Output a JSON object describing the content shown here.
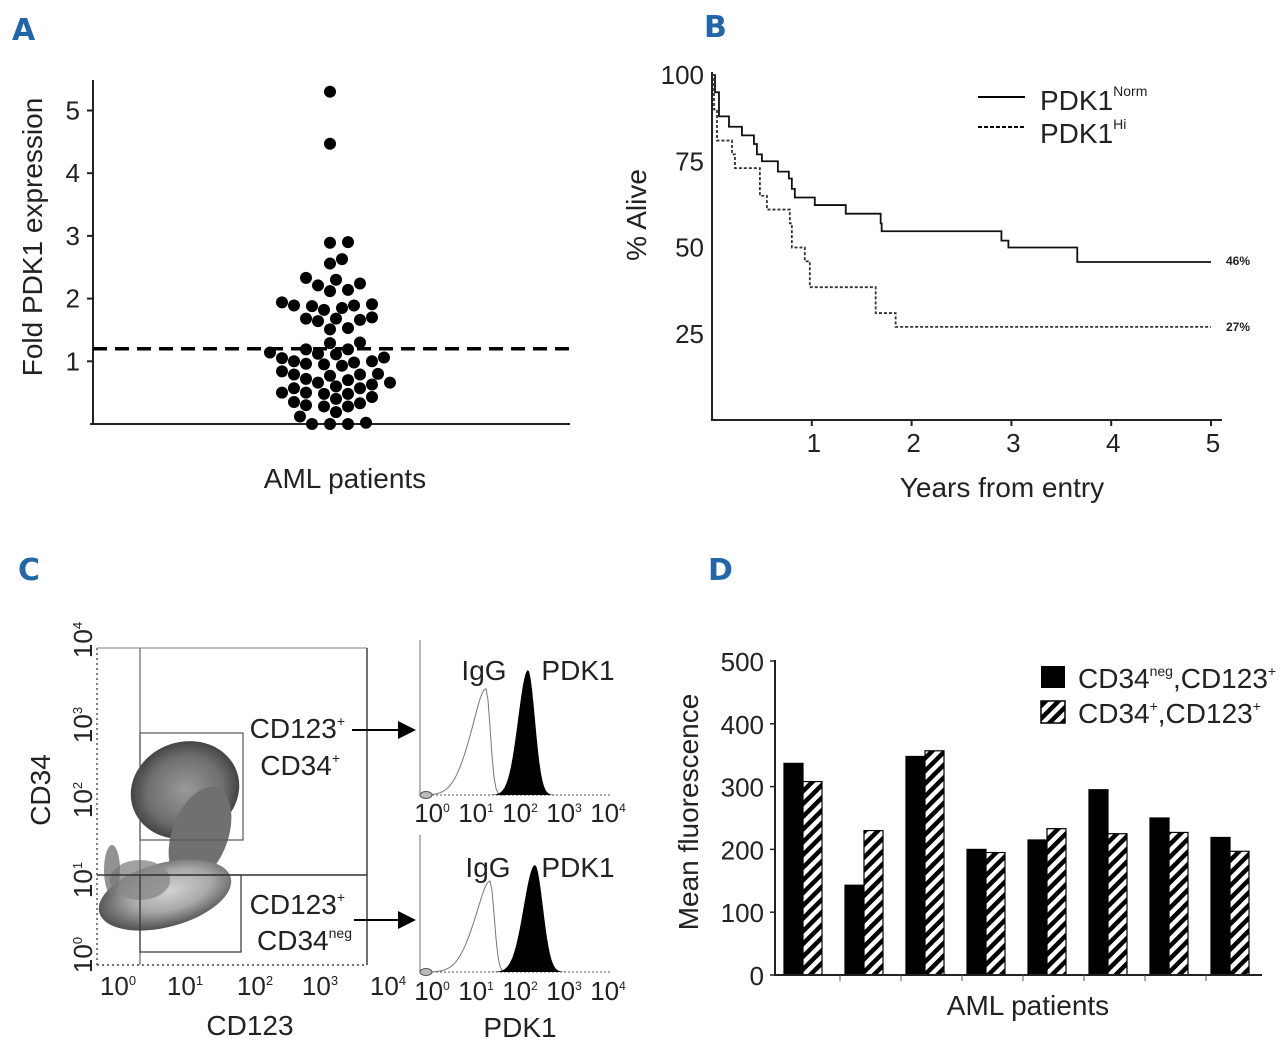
{
  "colors": {
    "panel_letter": "#2266aa",
    "ink": "#000000",
    "hatch_bg": "#ffffff"
  },
  "chart_data": [
    {
      "panel": "A",
      "type": "scatter",
      "ylabel": "Fold PDK1 expression",
      "xlabel": "AML patients",
      "yticks": [
        "1",
        "2",
        "3",
        "4",
        "5"
      ],
      "ylim": [
        0,
        5.5
      ],
      "threshold": 1.2,
      "values": [
        5.3,
        4.47,
        2.9,
        2.89,
        2.63,
        2.56,
        2.33,
        2.3,
        2.24,
        2.21,
        2.14,
        2.12,
        1.94,
        1.91,
        1.89,
        1.89,
        1.88,
        1.85,
        1.82,
        1.7,
        1.68,
        1.68,
        1.64,
        1.66,
        1.53,
        1.51,
        1.3,
        1.29,
        1.19,
        1.19,
        1.14,
        1.12,
        1.11,
        1.06,
        1.05,
        1.0,
        1.0,
        0.98,
        0.96,
        0.95,
        0.93,
        0.84,
        0.8,
        0.79,
        0.79,
        0.77,
        0.72,
        0.7,
        0.66,
        0.66,
        0.63,
        0.6,
        0.57,
        0.57,
        0.5,
        0.5,
        0.48,
        0.48,
        0.43,
        0.4,
        0.35,
        0.33,
        0.3,
        0.28,
        0.28,
        0.19,
        0.12,
        0.02,
        0.0,
        0.0,
        0.0
      ]
    },
    {
      "panel": "B",
      "type": "line",
      "ylabel": "% Alive",
      "xlabel": "Years from entry",
      "xticks": [
        "1",
        "2",
        "3",
        "4",
        "5"
      ],
      "yticks": [
        "25",
        "50",
        "75",
        "100"
      ],
      "xlim": [
        0,
        5
      ],
      "ylim": [
        0,
        100
      ],
      "legend_position": "top-right",
      "series": [
        {
          "name": "PDK1",
          "sup": "Norm",
          "style": "solid",
          "end_label": "46%",
          "steps": [
            [
              0,
              100
            ],
            [
              0.03,
              95
            ],
            [
              0.07,
              88
            ],
            [
              0.17,
              85
            ],
            [
              0.3,
              82.5
            ],
            [
              0.42,
              80
            ],
            [
              0.45,
              77
            ],
            [
              0.5,
              75
            ],
            [
              0.66,
              72
            ],
            [
              0.77,
              70
            ],
            [
              0.8,
              67
            ],
            [
              0.83,
              64.5
            ],
            [
              1.03,
              62.3
            ],
            [
              1.34,
              59.8
            ],
            [
              1.69,
              57
            ],
            [
              1.7,
              54.7
            ],
            [
              2.9,
              52
            ],
            [
              2.97,
              50
            ],
            [
              3.66,
              45.8
            ],
            [
              5,
              45.8
            ]
          ]
        },
        {
          "name": "PDK1",
          "sup": "Hi",
          "style": "dashed",
          "end_label": "27%",
          "steps": [
            [
              0,
              100
            ],
            [
              0.02,
              90
            ],
            [
              0.05,
              81
            ],
            [
              0.2,
              77
            ],
            [
              0.23,
              73
            ],
            [
              0.48,
              65
            ],
            [
              0.55,
              61
            ],
            [
              0.78,
              57
            ],
            [
              0.8,
              50
            ],
            [
              0.93,
              46
            ],
            [
              0.98,
              38.5
            ],
            [
              1.64,
              31
            ],
            [
              1.84,
              27
            ],
            [
              5,
              27
            ]
          ]
        }
      ]
    },
    {
      "panel": "C",
      "type": "scatter",
      "ylabel": "CD34",
      "xlabel": "CD123",
      "ticks": [
        {
          "b": "10",
          "e": "0"
        },
        {
          "b": "10",
          "e": "1"
        },
        {
          "b": "10",
          "e": "2"
        },
        {
          "b": "10",
          "e": "3"
        },
        {
          "b": "10",
          "e": "4"
        }
      ],
      "gates": [
        {
          "line1": "CD123",
          "sup1": "+",
          "line2": "CD34",
          "sup2": "+"
        },
        {
          "line1": "CD123",
          "sup1": "+",
          "line2": "CD34",
          "sup2": "neg"
        }
      ],
      "histograms": [
        {
          "control": "IgG",
          "stain": "PDK1"
        },
        {
          "control": "IgG",
          "stain": "PDK1"
        }
      ],
      "histogram_xlabel": "PDK1"
    },
    {
      "panel": "D",
      "type": "bar",
      "ylabel": "Mean fluorescence",
      "xlabel": "AML patients",
      "yticks": [
        "0",
        "100",
        "200",
        "300",
        "400",
        "500"
      ],
      "ylim": [
        0,
        500
      ],
      "legend_position": "top-right",
      "series": [
        {
          "name": "CD34",
          "sup": "neg",
          "suffix": ",CD123",
          "sup2": "+",
          "fill": "solid",
          "values": [
            337,
            143,
            348,
            200,
            215,
            295,
            250,
            219
          ]
        },
        {
          "name": "CD34",
          "sup": "+",
          "suffix": ",CD123",
          "sup2": "+",
          "fill": "hatched",
          "values": [
            308,
            230,
            357,
            195,
            233,
            225,
            227,
            197
          ]
        }
      ]
    }
  ],
  "panels": {
    "a": "A",
    "b": "B",
    "c": "C",
    "d": "D"
  }
}
